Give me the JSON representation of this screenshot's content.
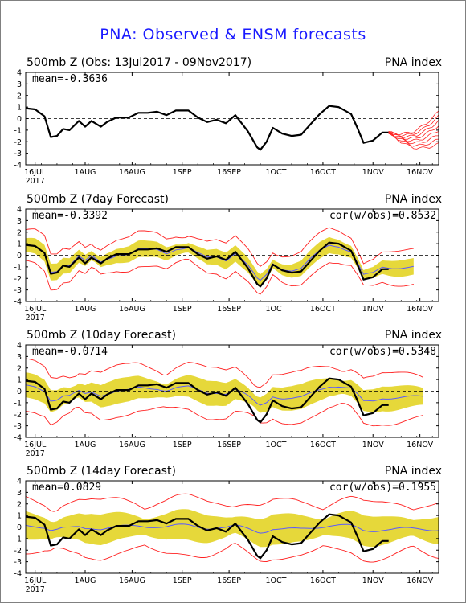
{
  "title": "PNA: Observed & ENSM forecasts",
  "colors": {
    "title": "#1a1aff",
    "observed": "#000000",
    "ensemble_mean": "#5a5aff",
    "spread_fill": "#e6d83a",
    "member_range": "#ff2020"
  },
  "chart_data": [
    {
      "type": "line",
      "title": "500mb Z (Obs: 13Jul2017 - 09Nov2017)",
      "right_label": "PNA index",
      "stat_left": "mean=-0.3636",
      "stat_right": "",
      "ylim": [
        -4,
        4
      ],
      "yticks": [
        -4,
        -3,
        -2,
        -1,
        0,
        1,
        2,
        3,
        4
      ],
      "xlim": [
        0,
        132
      ],
      "xticks": [
        {
          "day": 3,
          "label": "16JUL"
        },
        {
          "day": 19,
          "label": "1AUG"
        },
        {
          "day": 34,
          "label": "16AUG"
        },
        {
          "day": 50,
          "label": "1SEP"
        },
        {
          "day": 65,
          "label": "16SEP"
        },
        {
          "day": 80,
          "label": "1OCT"
        },
        {
          "day": 95,
          "label": "16OCT"
        },
        {
          "day": 111,
          "label": "1NOV"
        },
        {
          "day": 126,
          "label": "16NOV"
        }
      ],
      "year_label": "2017",
      "observed": [
        [
          0,
          0.9
        ],
        [
          3,
          0.8
        ],
        [
          6,
          0.2
        ],
        [
          8,
          -1.6
        ],
        [
          10,
          -1.5
        ],
        [
          12,
          -0.9
        ],
        [
          14,
          -1.0
        ],
        [
          17,
          -0.2
        ],
        [
          19,
          -0.7
        ],
        [
          21,
          -0.2
        ],
        [
          24,
          -0.7
        ],
        [
          26,
          -0.3
        ],
        [
          29,
          0.1
        ],
        [
          33,
          0.1
        ],
        [
          36,
          0.5
        ],
        [
          39,
          0.5
        ],
        [
          42,
          0.6
        ],
        [
          45,
          0.3
        ],
        [
          48,
          0.7
        ],
        [
          52,
          0.7
        ],
        [
          55,
          0.1
        ],
        [
          58,
          -0.3
        ],
        [
          61,
          -0.1
        ],
        [
          64,
          -0.4
        ],
        [
          67,
          0.3
        ],
        [
          71,
          -1.1
        ],
        [
          74,
          -2.5
        ],
        [
          75,
          -2.7
        ],
        [
          77,
          -2.0
        ],
        [
          79,
          -0.8
        ],
        [
          82,
          -1.3
        ],
        [
          85,
          -1.5
        ],
        [
          88,
          -1.4
        ],
        [
          91,
          -0.5
        ],
        [
          94,
          0.4
        ],
        [
          97,
          1.1
        ],
        [
          100,
          1.0
        ],
        [
          104,
          0.4
        ],
        [
          106,
          -0.8
        ],
        [
          108,
          -2.1
        ],
        [
          111,
          -1.9
        ],
        [
          114,
          -1.2
        ],
        [
          116,
          -1.2
        ]
      ],
      "member_start": 116,
      "member_ends": [
        -2.2,
        -1.8,
        -1.4,
        -1.0,
        -0.6,
        -0.2,
        0.2,
        0.6
      ]
    },
    {
      "type": "line",
      "title": "500mb Z (7day Forecast)",
      "right_label": "PNA index",
      "stat_left": "mean=-0.3392",
      "stat_right": "cor(w/obs)=0.8532",
      "ylim": [
        -4,
        4
      ],
      "yticks": [
        -4,
        -3,
        -2,
        -1,
        0,
        1,
        2,
        3,
        4
      ],
      "xlim": [
        0,
        132
      ],
      "xticks": [
        {
          "day": 3,
          "label": "16JUL"
        },
        {
          "day": 19,
          "label": "1AUG"
        },
        {
          "day": 34,
          "label": "16AUG"
        },
        {
          "day": 50,
          "label": "1SEP"
        },
        {
          "day": 65,
          "label": "16SEP"
        },
        {
          "day": 80,
          "label": "1OCT"
        },
        {
          "day": 95,
          "label": "16OCT"
        },
        {
          "day": 111,
          "label": "1NOV"
        },
        {
          "day": 126,
          "label": "16NOV"
        }
      ],
      "year_label": "2017",
      "end_day": 124,
      "spread_inner": 0.6,
      "spread_outer": 1.3
    },
    {
      "type": "line",
      "title": "500mb Z (10day Forecast)",
      "right_label": "PNA index",
      "stat_left": "mean=-0.0714",
      "stat_right": "cor(w/obs)=0.5348",
      "ylim": [
        -4,
        4
      ],
      "yticks": [
        -4,
        -3,
        -2,
        -1,
        0,
        1,
        2,
        3,
        4
      ],
      "xlim": [
        0,
        132
      ],
      "xticks": [
        {
          "day": 3,
          "label": "16JUL"
        },
        {
          "day": 19,
          "label": "1AUG"
        },
        {
          "day": 34,
          "label": "16AUG"
        },
        {
          "day": 50,
          "label": "1SEP"
        },
        {
          "day": 65,
          "label": "16SEP"
        },
        {
          "day": 80,
          "label": "1OCT"
        },
        {
          "day": 95,
          "label": "16OCT"
        },
        {
          "day": 111,
          "label": "1NOV"
        },
        {
          "day": 126,
          "label": "16NOV"
        }
      ],
      "year_label": "2017",
      "end_day": 127,
      "spread_inner": 0.9,
      "spread_outer": 1.9
    },
    {
      "type": "line",
      "title": "500mb Z (14day Forecast)",
      "right_label": "PNA index",
      "stat_left": "mean=0.0829",
      "stat_right": "cor(w/obs)=0.1955",
      "ylim": [
        -4,
        4
      ],
      "yticks": [
        -4,
        -3,
        -2,
        -1,
        0,
        1,
        2,
        3,
        4
      ],
      "xlim": [
        0,
        132
      ],
      "xticks": [
        {
          "day": 3,
          "label": "16JUL"
        },
        {
          "day": 19,
          "label": "1AUG"
        },
        {
          "day": 34,
          "label": "16AUG"
        },
        {
          "day": 50,
          "label": "1SEP"
        },
        {
          "day": 65,
          "label": "16SEP"
        },
        {
          "day": 80,
          "label": "1OCT"
        },
        {
          "day": 95,
          "label": "16OCT"
        },
        {
          "day": 111,
          "label": "1NOV"
        },
        {
          "day": 126,
          "label": "16NOV"
        }
      ],
      "year_label": "2017",
      "end_day": 132,
      "spread_inner": 1.1,
      "spread_outer": 2.2
    }
  ]
}
